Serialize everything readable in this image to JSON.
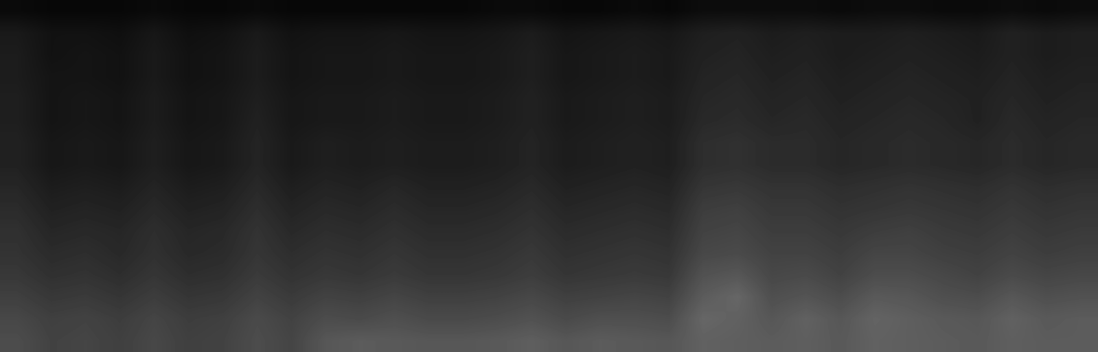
{
  "chart_data": {
    "type": "heatmap",
    "tick_labels": false,
    "color": "#ffffff",
    "clim": [
      0,
      100
    ],
    "cells": [
      [
        4,
        3,
        3,
        3,
        4,
        3,
        3,
        4,
        3,
        3,
        3,
        3,
        3,
        3,
        4,
        4,
        3,
        3,
        4,
        3,
        5,
        5,
        5,
        5,
        4,
        5,
        5,
        4,
        4,
        5,
        4,
        5
      ],
      [
        10,
        7,
        7,
        6,
        9,
        6,
        7,
        10,
        7,
        8,
        8,
        9,
        8,
        8,
        9,
        11,
        8,
        9,
        10,
        9,
        12,
        13,
        11,
        12,
        11,
        11,
        12,
        11,
        10,
        13,
        11,
        12
      ],
      [
        11,
        7,
        8,
        7,
        10,
        7,
        8,
        11,
        8,
        9,
        9,
        10,
        9,
        9,
        10,
        12,
        9,
        10,
        11,
        10,
        13,
        14,
        12,
        13,
        11,
        12,
        13,
        12,
        11,
        13,
        11,
        12
      ],
      [
        11,
        8,
        8,
        7,
        10,
        7,
        8,
        11,
        8,
        9,
        9,
        10,
        9,
        9,
        10,
        12,
        9,
        10,
        11,
        10,
        14,
        15,
        13,
        14,
        12,
        13,
        14,
        13,
        12,
        14,
        12,
        13
      ],
      [
        12,
        8,
        9,
        8,
        11,
        8,
        9,
        12,
        9,
        10,
        10,
        11,
        10,
        10,
        11,
        13,
        10,
        11,
        12,
        11,
        15,
        16,
        14,
        15,
        13,
        14,
        15,
        14,
        13,
        15,
        13,
        14
      ],
      [
        12,
        8,
        9,
        8,
        11,
        8,
        9,
        13,
        9,
        10,
        10,
        11,
        10,
        10,
        11,
        13,
        10,
        11,
        12,
        11,
        16,
        17,
        15,
        16,
        14,
        15,
        16,
        15,
        13,
        16,
        14,
        15
      ],
      [
        13,
        9,
        10,
        9,
        12,
        9,
        10,
        14,
        10,
        12,
        11,
        12,
        11,
        11,
        12,
        14,
        11,
        12,
        13,
        12,
        18,
        19,
        17,
        17,
        15,
        16,
        17,
        16,
        15,
        17,
        15,
        16
      ],
      [
        13,
        9,
        10,
        9,
        12,
        9,
        10,
        14,
        10,
        12,
        11,
        12,
        11,
        11,
        12,
        14,
        11,
        12,
        13,
        12,
        18,
        19,
        17,
        17,
        15,
        16,
        17,
        16,
        15,
        17,
        15,
        16
      ],
      [
        15,
        11,
        12,
        11,
        14,
        11,
        12,
        16,
        12,
        14,
        13,
        15,
        13,
        13,
        14,
        16,
        13,
        14,
        15,
        14,
        21,
        22,
        20,
        20,
        18,
        19,
        20,
        19,
        18,
        20,
        18,
        19
      ],
      [
        17,
        13,
        14,
        13,
        16,
        13,
        14,
        18,
        14,
        16,
        15,
        17,
        15,
        15,
        16,
        18,
        15,
        16,
        17,
        16,
        24,
        25,
        22,
        22,
        20,
        21,
        22,
        21,
        20,
        22,
        20,
        21
      ],
      [
        19,
        15,
        16,
        15,
        18,
        15,
        16,
        20,
        16,
        18,
        17,
        19,
        17,
        17,
        18,
        20,
        17,
        18,
        19,
        18,
        26,
        27,
        24,
        24,
        22,
        24,
        25,
        23,
        22,
        24,
        22,
        23
      ],
      [
        20,
        17,
        18,
        16,
        19,
        16,
        17,
        21,
        18,
        20,
        19,
        21,
        19,
        19,
        20,
        22,
        19,
        20,
        21,
        20,
        28,
        29,
        26,
        26,
        24,
        27,
        27,
        25,
        24,
        26,
        24,
        25
      ],
      [
        22,
        19,
        20,
        18,
        21,
        18,
        19,
        23,
        20,
        22,
        21,
        23,
        21,
        21,
        22,
        24,
        21,
        22,
        23,
        22,
        32,
        34,
        28,
        29,
        26,
        30,
        30,
        28,
        26,
        29,
        27,
        28
      ],
      [
        25,
        22,
        23,
        21,
        24,
        21,
        22,
        26,
        23,
        26,
        25,
        27,
        25,
        25,
        26,
        28,
        25,
        26,
        27,
        26,
        36,
        40,
        31,
        33,
        30,
        35,
        34,
        31,
        30,
        34,
        31,
        32
      ],
      [
        28,
        25,
        26,
        24,
        27,
        24,
        25,
        29,
        26,
        30,
        29,
        31,
        29,
        29,
        30,
        32,
        29,
        31,
        31,
        30,
        40,
        38,
        34,
        38,
        34,
        39,
        37,
        35,
        34,
        38,
        35,
        36
      ],
      [
        30,
        26,
        27,
        25,
        28,
        25,
        26,
        30,
        27,
        34,
        36,
        35,
        34,
        34,
        35,
        37,
        34,
        36,
        35,
        34,
        38,
        37,
        36,
        37,
        35,
        38,
        37,
        36,
        35,
        37,
        36,
        36
      ]
    ]
  }
}
